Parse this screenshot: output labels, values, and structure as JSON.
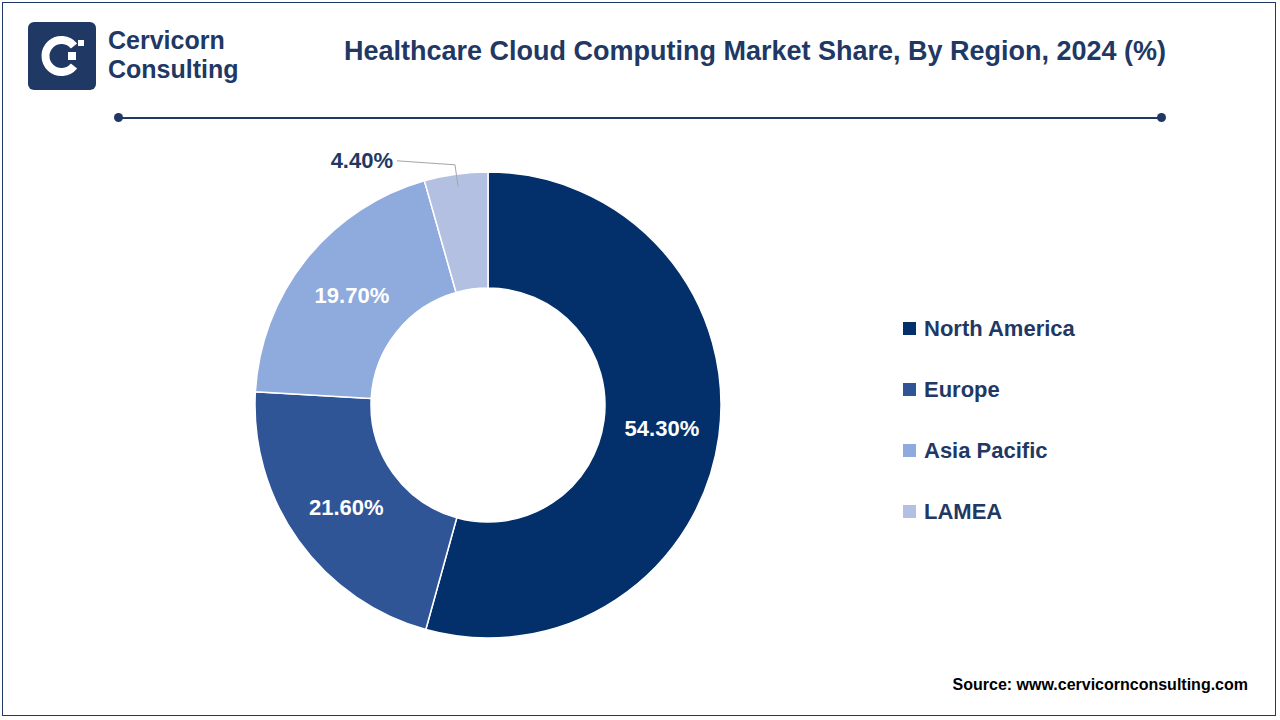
{
  "chart_data": {
    "type": "donut",
    "title": "Healthcare Cloud Computing Market Share, By Region, 2024 (%)",
    "categories": [
      "North America",
      "Europe",
      "Asia Pacific",
      "LAMEA"
    ],
    "values": [
      54.3,
      21.6,
      19.7,
      4.4
    ],
    "value_labels": [
      "54.30%",
      "21.60%",
      "19.70%",
      "4.40%"
    ],
    "colors": [
      "#03306a",
      "#2f5597",
      "#8faadc",
      "#b4c0e2"
    ],
    "data_labels": true,
    "legend": "right",
    "source": "Source: www.cervicornconsulting.com",
    "logo": [
      "Cervicorn",
      "Consulting"
    ]
  }
}
